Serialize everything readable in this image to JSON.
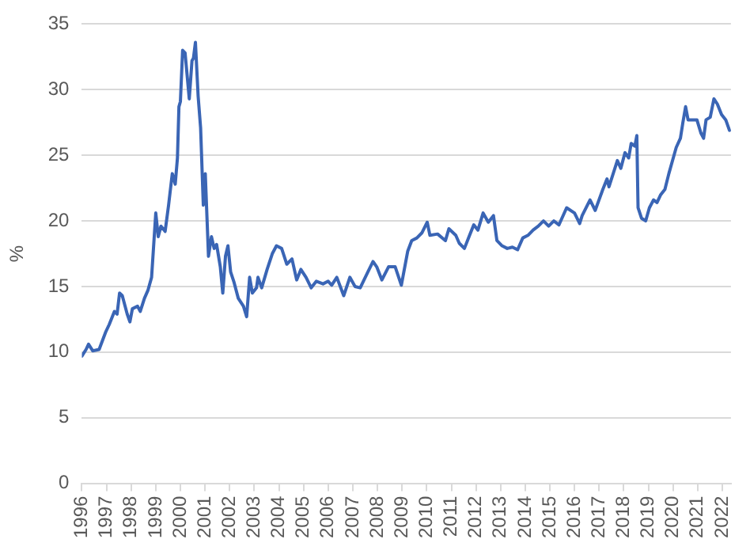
{
  "chart_data": {
    "type": "line",
    "ylabel": "%",
    "x": [
      1996.0,
      1996.17,
      1996.27,
      1996.44,
      1996.7,
      1996.96,
      1997.11,
      1997.32,
      1997.43,
      1997.53,
      1997.64,
      1997.84,
      1997.95,
      1998.05,
      1998.26,
      1998.37,
      1998.54,
      1998.68,
      1998.83,
      1999.0,
      1999.1,
      1999.21,
      1999.38,
      1999.52,
      1999.67,
      1999.79,
      1999.88,
      1999.94,
      2000.0,
      2000.09,
      2000.19,
      2000.36,
      2000.47,
      2000.53,
      2000.61,
      2000.72,
      2000.82,
      2000.93,
      2001.01,
      2001.14,
      2001.26,
      2001.37,
      2001.47,
      2001.62,
      2001.72,
      2001.83,
      2001.93,
      2002.04,
      2002.18,
      2002.35,
      2002.56,
      2002.69,
      2002.81,
      2002.92,
      2003.09,
      2003.15,
      2003.3,
      2003.52,
      2003.73,
      2003.9,
      2004.11,
      2004.32,
      2004.53,
      2004.72,
      2004.89,
      2005.1,
      2005.31,
      2005.52,
      2005.79,
      2006.0,
      2006.14,
      2006.35,
      2006.63,
      2006.88,
      2007.09,
      2007.3,
      2007.61,
      2007.82,
      2007.97,
      2008.18,
      2008.45,
      2008.72,
      2008.97,
      2009.23,
      2009.39,
      2009.6,
      2009.81,
      2010.02,
      2010.13,
      2010.44,
      2010.76,
      2010.9,
      2011.18,
      2011.32,
      2011.53,
      2011.74,
      2011.91,
      2012.08,
      2012.29,
      2012.5,
      2012.71,
      2012.85,
      2013.06,
      2013.27,
      2013.48,
      2013.69,
      2013.9,
      2014.11,
      2014.32,
      2014.53,
      2014.74,
      2014.95,
      2015.16,
      2015.37,
      2015.68,
      2016.0,
      2016.21,
      2016.31,
      2016.63,
      2016.84,
      2017.15,
      2017.32,
      2017.4,
      2017.57,
      2017.74,
      2017.88,
      2018.05,
      2018.2,
      2018.3,
      2018.45,
      2018.53,
      2018.58,
      2018.72,
      2018.89,
      2019.04,
      2019.21,
      2019.35,
      2019.5,
      2019.67,
      2019.83,
      2019.98,
      2020.13,
      2020.3,
      2020.4,
      2020.51,
      2020.61,
      2020.82,
      2020.97,
      2021.13,
      2021.24,
      2021.34,
      2021.51,
      2021.66,
      2021.8,
      2021.97,
      2022.14,
      2022.29
    ],
    "series": [
      {
        "color": "#3a65b5",
        "values": [
          9.7,
          10.2,
          10.6,
          10.1,
          10.2,
          11.5,
          12.1,
          13.1,
          12.9,
          14.5,
          14.3,
          12.9,
          12.3,
          13.3,
          13.5,
          13.1,
          14.1,
          14.7,
          15.7,
          20.6,
          18.8,
          19.6,
          19.2,
          21.2,
          23.6,
          22.8,
          24.8,
          28.7,
          29.1,
          33.0,
          32.8,
          29.3,
          32.2,
          32.4,
          33.6,
          29.5,
          27.1,
          21.2,
          23.6,
          17.3,
          18.8,
          17.9,
          18.2,
          16.5,
          14.5,
          17.3,
          18.1,
          16.1,
          15.3,
          14.1,
          13.5,
          12.7,
          15.7,
          14.5,
          14.9,
          15.7,
          14.9,
          16.3,
          17.5,
          18.1,
          17.9,
          16.7,
          17.1,
          15.5,
          16.3,
          15.7,
          14.9,
          15.4,
          15.2,
          15.4,
          15.1,
          15.7,
          14.3,
          15.7,
          15.0,
          14.9,
          16.1,
          16.9,
          16.5,
          15.5,
          16.5,
          16.5,
          15.1,
          17.7,
          18.5,
          18.7,
          19.1,
          19.9,
          18.9,
          19.0,
          18.5,
          19.4,
          18.9,
          18.3,
          17.9,
          18.9,
          19.7,
          19.3,
          20.6,
          19.9,
          20.4,
          18.5,
          18.1,
          17.9,
          18.0,
          17.8,
          18.7,
          18.9,
          19.3,
          19.6,
          20.0,
          19.6,
          20.0,
          19.7,
          21.0,
          20.6,
          19.8,
          20.4,
          21.6,
          20.8,
          22.4,
          23.2,
          22.6,
          23.6,
          24.6,
          24.0,
          25.2,
          24.8,
          25.9,
          25.7,
          26.5,
          21.0,
          20.2,
          20.0,
          21.0,
          21.6,
          21.4,
          22.0,
          22.4,
          23.6,
          24.6,
          25.6,
          26.3,
          27.5,
          28.7,
          27.7,
          27.7,
          27.7,
          26.7,
          26.3,
          27.7,
          27.9,
          29.3,
          28.9,
          28.1,
          27.7,
          26.9
        ]
      }
    ],
    "xlim": [
      1996,
      2022.35
    ],
    "xticks": [
      1996,
      1997,
      1998,
      1999,
      2000,
      2001,
      2002,
      2003,
      2004,
      2005,
      2006,
      2007,
      2008,
      2009,
      2010,
      2011,
      2012,
      2013,
      2014,
      2015,
      2016,
      2017,
      2018,
      2019,
      2020,
      2021,
      2022
    ],
    "ylim": [
      0,
      35
    ],
    "yticks": [
      0,
      5,
      10,
      15,
      20,
      25,
      30,
      35
    ],
    "grid": "y",
    "legend": false
  }
}
